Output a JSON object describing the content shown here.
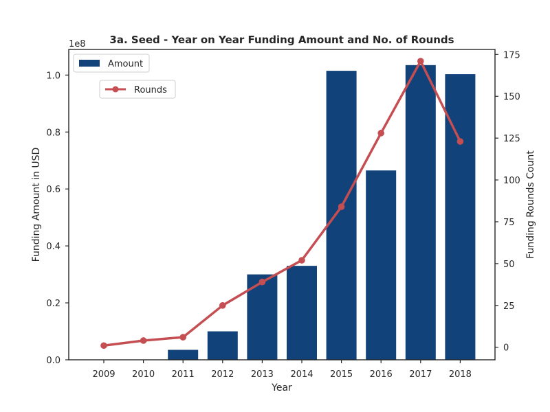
{
  "chart_data": {
    "type": "bar+line",
    "title": "3a. Seed - Year on Year Funding Amount and No. of Rounds",
    "xlabel": "Year",
    "ylabel_left": "Funding Amount in USD",
    "ylabel_right": "Funding Rounds Count",
    "left_scale_label": "1e8",
    "categories": [
      "2009",
      "2010",
      "2011",
      "2012",
      "2013",
      "2014",
      "2015",
      "2016",
      "2017",
      "2018"
    ],
    "left_axis": {
      "ylim": [
        0,
        1.09
      ],
      "ticks": [
        0.0,
        0.2,
        0.4,
        0.6,
        0.8,
        1.0
      ],
      "tick_labels": [
        "0.0",
        "0.2",
        "0.4",
        "0.6",
        "0.8",
        "1.0"
      ],
      "unit_multiplier": 100000000
    },
    "right_axis": {
      "ylim": [
        -7.5,
        178
      ],
      "ticks": [
        0,
        25,
        50,
        75,
        100,
        125,
        150,
        175
      ],
      "tick_labels": [
        "0",
        "25",
        "50",
        "75",
        "100",
        "125",
        "150",
        "175"
      ]
    },
    "series": [
      {
        "name": "Amount",
        "kind": "bar",
        "axis": "left",
        "color": "#12427a",
        "values": [
          0.0,
          0.0,
          0.035,
          0.1,
          0.3,
          0.33,
          1.015,
          0.665,
          1.035,
          1.003
        ]
      },
      {
        "name": "Rounds",
        "kind": "line",
        "axis": "right",
        "color": "#c44e52",
        "values": [
          1,
          4,
          6,
          25,
          39,
          52,
          84,
          128,
          171,
          123
        ]
      }
    ],
    "legend": [
      {
        "label": "Amount",
        "position": "top-left"
      },
      {
        "label": "Rounds",
        "position": "top-left"
      }
    ],
    "grid": false
  }
}
